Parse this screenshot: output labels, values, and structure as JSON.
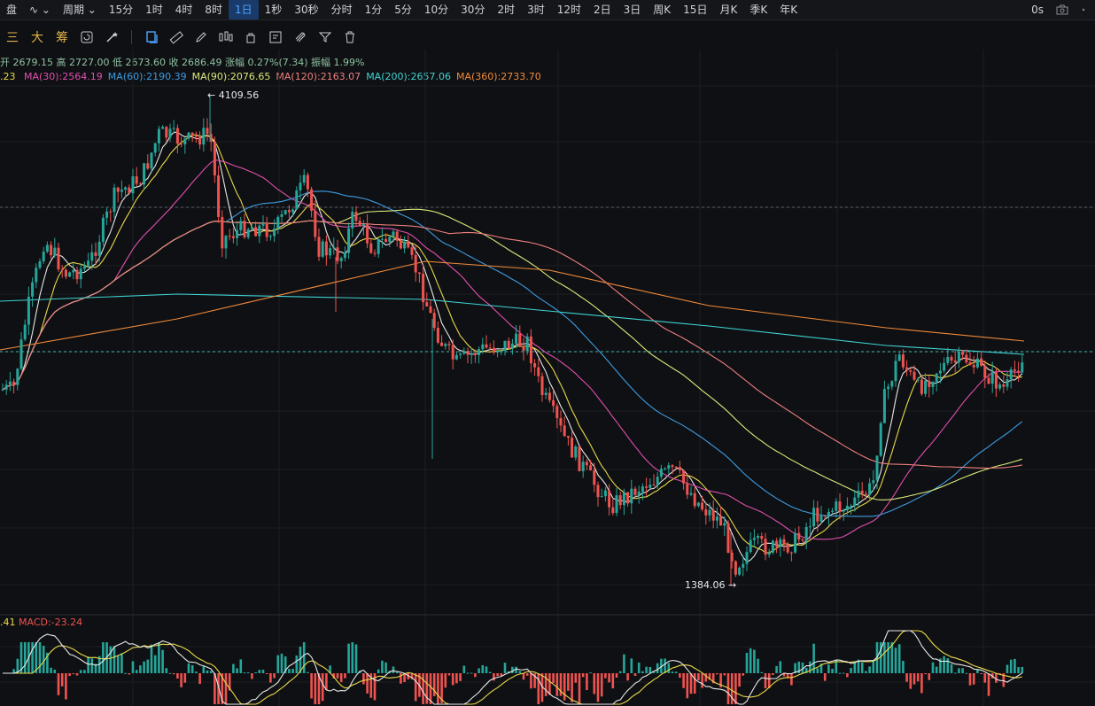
{
  "topbar": {
    "items": [
      "盘",
      "∿ ⌄",
      "周期 ⌄",
      "15分",
      "1时",
      "4时",
      "8时",
      "1日",
      "1秒",
      "30秒",
      "分时",
      "1分",
      "5分",
      "10分",
      "30分",
      "2时",
      "3时",
      "12时",
      "2日",
      "3日",
      "周K",
      "15日",
      "月K",
      "季K",
      "年K"
    ],
    "active_index": 7,
    "latency": "0s"
  },
  "toolbar": {
    "left_labels": [
      "三",
      "大",
      "筹"
    ]
  },
  "ohlc": {
    "open_label": "开",
    "open": "2679.15",
    "high_label": "高",
    "high": "2727.00",
    "low_label": "低",
    "low": "2673.60",
    "close_label": "收",
    "close": "2686.49",
    "change_label": "涨幅",
    "change": "0.27%(7.34)",
    "amp_label": "振幅",
    "amp": "1.99%"
  },
  "ma": {
    "first_value": ".23",
    "lines": [
      {
        "label": "MA(30):2564.19",
        "color": "#e04fae"
      },
      {
        "label": "MA(60):2190.39",
        "color": "#3d9be0"
      },
      {
        "label": "MA(90):2076.65",
        "color": "#d9e87a"
      },
      {
        "label": "MA(120):2163.07",
        "color": "#ef7f7f"
      },
      {
        "label": "MA(200):2657.06",
        "color": "#3fd3d3"
      },
      {
        "label": "MA(360):2733.70",
        "color": "#f08a3a"
      }
    ]
  },
  "annotations": {
    "high_marker": "← 4109.56",
    "low_marker": "1384.06 →"
  },
  "macd": {
    "first_value": ".41",
    "label": "MACD:-23.24"
  },
  "colors": {
    "up": "#26a69a",
    "down": "#ef5350",
    "background": "#0f1013",
    "active_tab": "#4da3ff"
  }
}
